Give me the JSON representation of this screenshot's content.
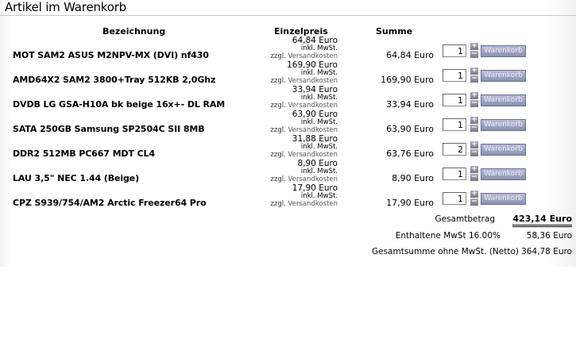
{
  "title": "Artikel im Warenkorb",
  "headers": {
    "name": "Bezeichnung",
    "price": "Einzelpreis",
    "sum": "Summe"
  },
  "price_note": {
    "vat": "inkl. MwSt.",
    "prefix": "zzgl.",
    "shipping": "Versandkosten"
  },
  "cart_button": "Warenkorb",
  "items": [
    {
      "name": "MOT SAM2 ASUS M2NPV-MX (DVI) nf430",
      "price": "64,84 Euro",
      "sum": "64,84 Euro",
      "qty": "1"
    },
    {
      "name": "AMD64X2 SAM2 3800+Tray 512KB 2,0Ghz",
      "price": "169,90 Euro",
      "sum": "169,90 Euro",
      "qty": "1"
    },
    {
      "name": "DVDB LG GSA-H10A bk beige 16x+- DL RAM",
      "price": "33,94 Euro",
      "sum": "33,94 Euro",
      "qty": "1"
    },
    {
      "name": "SATA 250GB Samsung SP2504C SII 8MB",
      "price": "63,90 Euro",
      "sum": "63,90 Euro",
      "qty": "1"
    },
    {
      "name": "DDR2 512MB PC667 MDT CL4",
      "price": "31,88 Euro",
      "sum": "63,76 Euro",
      "qty": "2"
    },
    {
      "name": "LAU 3,5\" NEC 1.44 (Beige)",
      "price": "8,90 Euro",
      "sum": "8,90 Euro",
      "qty": "1"
    },
    {
      "name": "CPZ S939/754/AM2 Arctic Freezer64 Pro",
      "price": "17,90 Euro",
      "sum": "17,90 Euro",
      "qty": "1"
    }
  ],
  "totals": {
    "total_label": "Gesamtbetrag",
    "total": "423,14 Euro",
    "vat_label": "Enthaltene MwSt 16.00%",
    "vat": "58,36 Euro",
    "net_label": "Gesamtsumme ohne MwSt. (Netto)",
    "net": "364,78 Euro"
  }
}
